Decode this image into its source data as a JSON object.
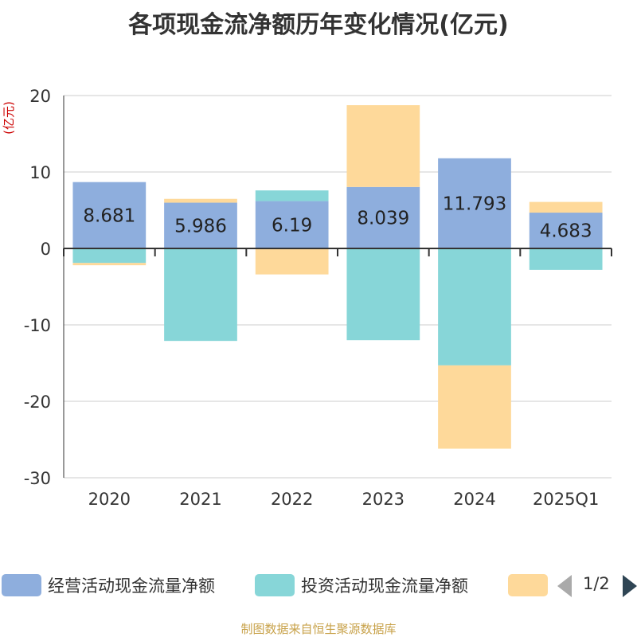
{
  "title": "各项现金流净额历年变化情况(亿元)",
  "source": "制图数据来自恒生聚源数据库",
  "chart_data": {
    "type": "bar",
    "stacked": true,
    "unit_label": "(亿元)",
    "categories": [
      "2020",
      "2021",
      "2022",
      "2023",
      "2024",
      "2025Q1"
    ],
    "ylim": [
      -30,
      20
    ],
    "yticks": [
      20,
      10,
      0,
      -10,
      -20,
      -30
    ],
    "grid": true,
    "legend_position": "bottom",
    "series": [
      {
        "name": "经营活动现金流量净额",
        "color": "#8eaedd",
        "values": [
          8.681,
          5.986,
          6.19,
          8.039,
          11.793,
          4.683
        ],
        "show_labels": true
      },
      {
        "name": "投资活动现金流量净额",
        "color": "#87d6d8",
        "values": [
          -1.9,
          -12.1,
          1.4,
          -12.0,
          -15.3,
          -2.8
        ],
        "show_labels": false
      },
      {
        "name": "",
        "color": "#fed99a",
        "values": [
          -0.3,
          0.5,
          -3.4,
          10.7,
          -10.9,
          1.4
        ],
        "show_labels": false
      }
    ]
  },
  "legend": {
    "items": [
      {
        "label": "经营活动现金流量净额",
        "color": "#8eaedd"
      },
      {
        "label": "投资活动现金流量净额",
        "color": "#87d6d8"
      },
      {
        "label": "",
        "color": "#fed99a"
      }
    ],
    "pager": "1/2"
  }
}
